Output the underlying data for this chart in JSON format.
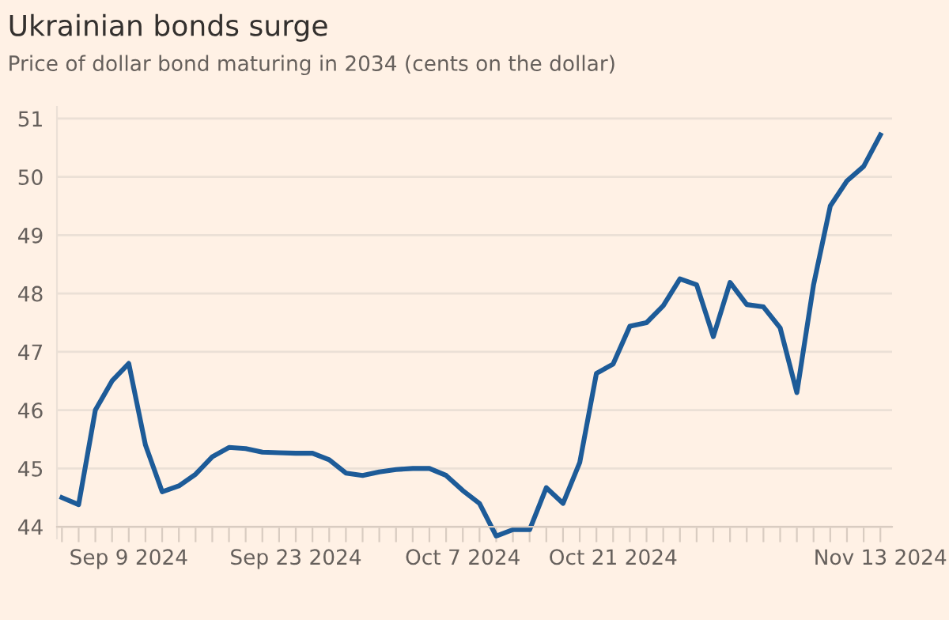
{
  "chart_data": {
    "type": "line",
    "title": "Ukrainian bonds surge",
    "subtitle": "Price of dollar bond maturing in 2034 (cents on the dollar)",
    "categories": [
      null,
      null,
      null,
      null,
      "Sep 9 2024",
      null,
      null,
      null,
      null,
      null,
      null,
      null,
      null,
      null,
      "Sep 23 2024",
      null,
      null,
      null,
      null,
      null,
      null,
      null,
      null,
      null,
      "Oct 7 2024",
      null,
      null,
      null,
      null,
      null,
      null,
      null,
      null,
      "Oct 21 2024",
      null,
      null,
      null,
      null,
      null,
      null,
      null,
      null,
      null,
      null,
      null,
      null,
      null,
      null,
      null,
      "Nov 13 2024"
    ],
    "series": [
      {
        "color": "#1d5b98",
        "values": [
          44.5,
          44.38,
          46.0,
          46.5,
          46.8,
          45.4,
          44.6,
          44.7,
          44.9,
          45.2,
          45.36,
          45.34,
          45.28,
          45.27,
          45.26,
          45.26,
          45.15,
          44.92,
          44.88,
          44.94,
          44.98,
          45.0,
          45.0,
          44.88,
          44.62,
          44.4,
          43.84,
          43.95,
          43.95,
          44.67,
          44.4,
          45.1,
          46.63,
          46.79,
          47.44,
          47.5,
          47.79,
          48.25,
          48.15,
          47.26,
          48.19,
          47.81,
          47.77,
          47.41,
          46.3,
          48.15,
          49.5,
          49.93,
          50.18,
          50.72
        ]
      }
    ],
    "ylim": [
      43.8,
      51.2
    ],
    "yticks": [
      44,
      45,
      46,
      47,
      48,
      49,
      50,
      51
    ],
    "grid": "y",
    "marker": "none",
    "line_style": "solid"
  }
}
